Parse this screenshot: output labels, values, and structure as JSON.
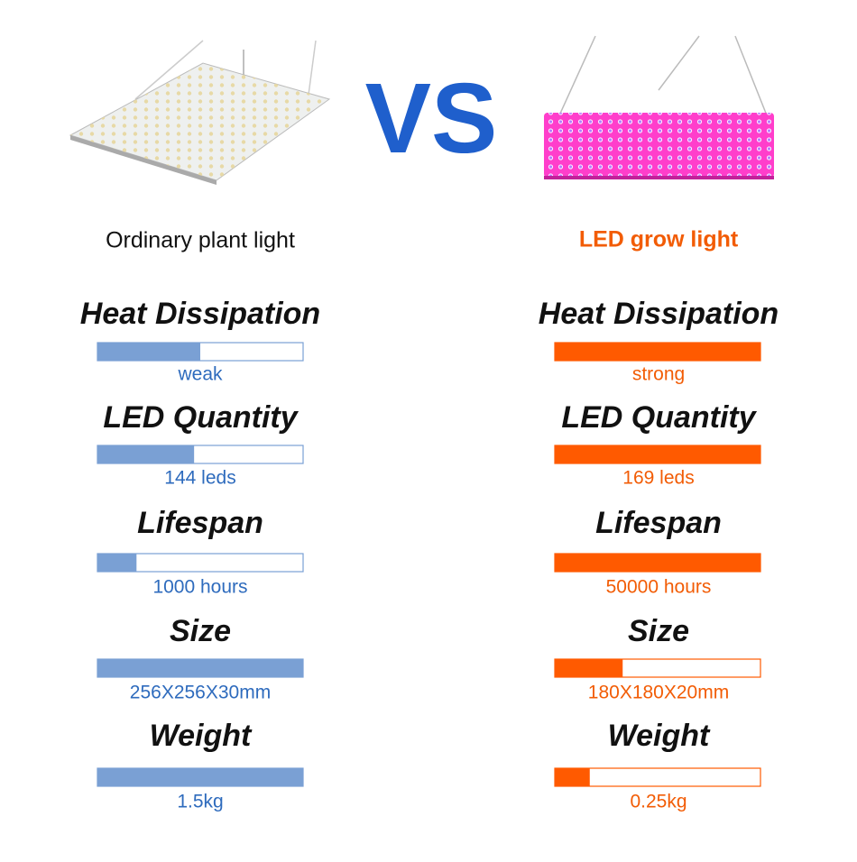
{
  "header": {
    "vs": "VS",
    "left_title": "Ordinary plant light",
    "right_title": "LED grow light"
  },
  "metrics": [
    {
      "label": "Heat Dissipation",
      "left": {
        "text": "weak",
        "fill": 50
      },
      "right": {
        "text": "strong",
        "fill": 100
      }
    },
    {
      "label": "LED Quantity",
      "left": {
        "text": "144 leds",
        "fill": 47
      },
      "right": {
        "text": "169 leds",
        "fill": 100
      }
    },
    {
      "label": "Lifespan",
      "left": {
        "text": "1000 hours",
        "fill": 19
      },
      "right": {
        "text": "50000 hours",
        "fill": 100
      }
    },
    {
      "label": "Size",
      "left": {
        "text": "256X256X30mm",
        "fill": 100
      },
      "right": {
        "text": "180X180X20mm",
        "fill": 33
      }
    },
    {
      "label": "Weight",
      "left": {
        "text": "1.5kg",
        "fill": 100
      },
      "right": {
        "text": "0.25kg",
        "fill": 17
      }
    }
  ]
}
